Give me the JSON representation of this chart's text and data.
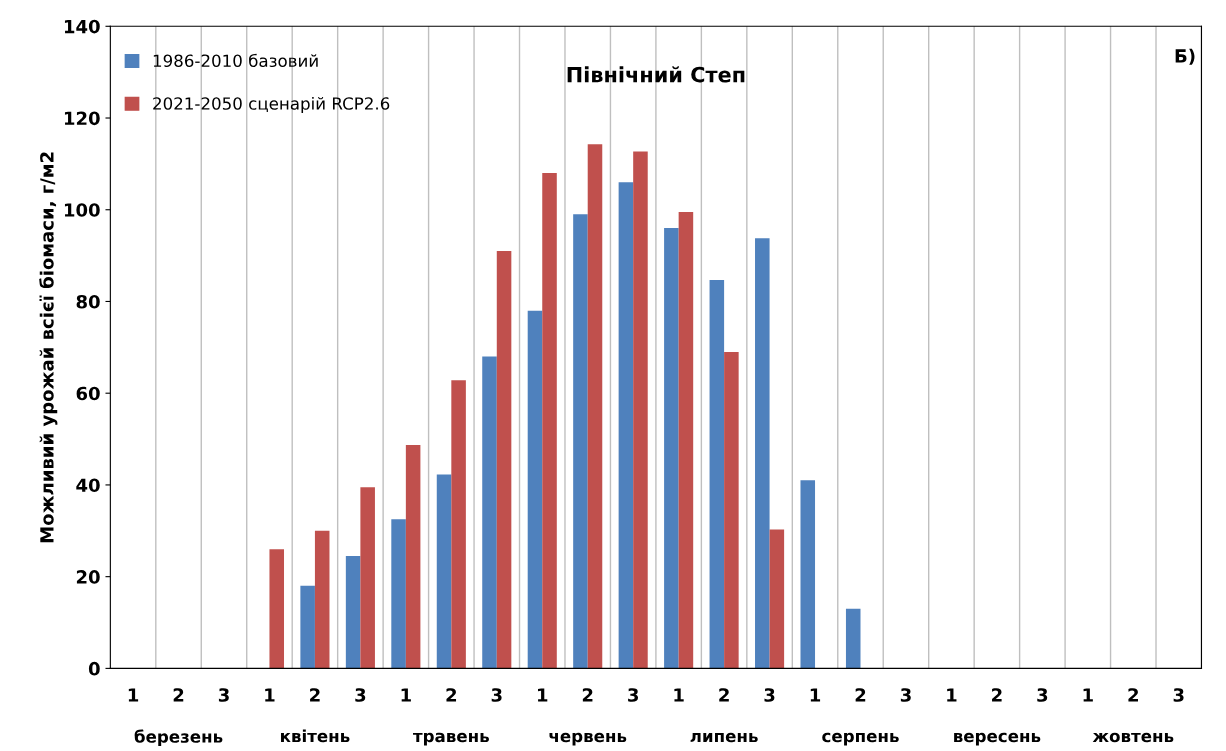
{
  "chart_data": {
    "type": "bar",
    "title": "Північний Степ",
    "ylabel": "Можливий урожай всієї біомаси, г/м2",
    "categories": [
      "1",
      "2",
      "3",
      "1",
      "2",
      "3",
      "1",
      "2",
      "3",
      "1",
      "2",
      "3",
      "1",
      "2",
      "3",
      "1",
      "2",
      "3",
      "1",
      "2",
      "3",
      "1",
      "2",
      "3"
    ],
    "series": [
      {
        "name": "1986-2010 базовий",
        "color": "#4f81bd",
        "values": [
          null,
          null,
          null,
          null,
          18,
          24.5,
          32.5,
          42.3,
          68,
          78,
          99,
          106,
          96,
          84.7,
          93.8,
          41,
          13,
          null,
          null,
          null,
          null,
          null,
          null,
          null
        ]
      },
      {
        "name": "2021-2050 сценарій RCP2.6",
        "color": "#c0504d",
        "values": [
          null,
          null,
          null,
          26,
          30,
          39.5,
          48.7,
          62.8,
          91,
          108,
          114.3,
          112.7,
          99.5,
          69,
          30.3,
          null,
          null,
          null,
          null,
          null,
          null,
          null,
          null,
          null
        ]
      }
    ],
    "annotations": [
      "Б)",
      "березень",
      "квітень",
      "травень",
      "червень",
      "липень",
      "серпень",
      "вересень",
      "жовтень"
    ],
    "ylim": [
      0,
      140
    ],
    "yticks": [
      0,
      20,
      40,
      60,
      80,
      100,
      120,
      140
    ],
    "grid": "x",
    "legend": "top left"
  }
}
